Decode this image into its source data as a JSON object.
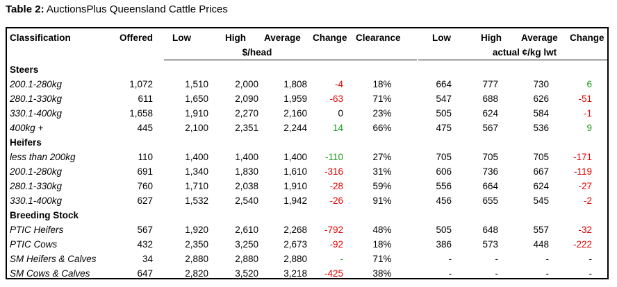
{
  "caption": {
    "label": "Table 2:",
    "title": "AuctionsPlus Queensland Cattle Prices"
  },
  "headers": {
    "classification": "Classification",
    "offered": "Offered",
    "low": "Low",
    "high": "High",
    "average": "Average",
    "change": "Change",
    "clearance": "Clearance",
    "low2": "Low",
    "high2": "High",
    "average2": "Average",
    "change2": "Change",
    "unit_head": "$/head",
    "unit_kg": "actual ¢/kg lwt"
  },
  "sections": [
    {
      "name": "Steers",
      "rows": [
        {
          "label": "200.1-280kg",
          "offered": "1,072",
          "low": "1,510",
          "high": "2,000",
          "avg": "1,808",
          "change": "-4",
          "change_color": "red",
          "clearance": "18%",
          "low2": "664",
          "high2": "777",
          "avg2": "730",
          "change2": "6",
          "change2_color": "green"
        },
        {
          "label": "280.1-330kg",
          "offered": "611",
          "low": "1,650",
          "high": "2,090",
          "avg": "1,959",
          "change": "-63",
          "change_color": "red",
          "clearance": "71%",
          "low2": "547",
          "high2": "688",
          "avg2": "626",
          "change2": "-51",
          "change2_color": "red"
        },
        {
          "label": "330.1-400kg",
          "offered": "1,658",
          "low": "1,910",
          "high": "2,270",
          "avg": "2,160",
          "change": "0",
          "change_color": "black",
          "clearance": "23%",
          "low2": "505",
          "high2": "624",
          "avg2": "584",
          "change2": "-1",
          "change2_color": "red"
        },
        {
          "label": "400kg +",
          "offered": "445",
          "low": "2,100",
          "high": "2,351",
          "avg": "2,244",
          "change": "14",
          "change_color": "green",
          "clearance": "66%",
          "low2": "475",
          "high2": "567",
          "avg2": "536",
          "change2": "9",
          "change2_color": "green"
        }
      ]
    },
    {
      "name": "Heifers",
      "rows": [
        {
          "label": "less than 200kg",
          "offered": "110",
          "low": "1,400",
          "high": "1,400",
          "avg": "1,400",
          "change": "-110",
          "change_color": "green",
          "clearance": "27%",
          "low2": "705",
          "high2": "705",
          "avg2": "705",
          "change2": "-171",
          "change2_color": "red"
        },
        {
          "label": "200.1-280kg",
          "offered": "691",
          "low": "1,340",
          "high": "1,830",
          "avg": "1,610",
          "change": "-316",
          "change_color": "red",
          "clearance": "31%",
          "low2": "606",
          "high2": "736",
          "avg2": "667",
          "change2": "-119",
          "change2_color": "red"
        },
        {
          "label": "280.1-330kg",
          "offered": "760",
          "low": "1,710",
          "high": "2,038",
          "avg": "1,910",
          "change": "-28",
          "change_color": "red",
          "clearance": "59%",
          "low2": "556",
          "high2": "664",
          "avg2": "624",
          "change2": "-27",
          "change2_color": "red"
        },
        {
          "label": "330.1-400kg",
          "offered": "627",
          "low": "1,532",
          "high": "2,540",
          "avg": "1,942",
          "change": "-26",
          "change_color": "red",
          "clearance": "91%",
          "low2": "456",
          "high2": "655",
          "avg2": "545",
          "change2": "-2",
          "change2_color": "red"
        }
      ]
    },
    {
      "name": "Breeding Stock",
      "rows": [
        {
          "label": "PTIC Heifers",
          "offered": "567",
          "low": "1,920",
          "high": "2,610",
          "avg": "2,268",
          "change": "-792",
          "change_color": "red",
          "clearance": "48%",
          "low2": "505",
          "high2": "648",
          "avg2": "557",
          "change2": "-32",
          "change2_color": "red"
        },
        {
          "label": "PTIC Cows",
          "offered": "432",
          "low": "2,350",
          "high": "3,250",
          "avg": "2,673",
          "change": "-92",
          "change_color": "red",
          "clearance": "18%",
          "low2": "386",
          "high2": "573",
          "avg2": "448",
          "change2": "-222",
          "change2_color": "red"
        },
        {
          "label": "SM Heifers & Calves",
          "offered": "34",
          "low": "2,880",
          "high": "2,880",
          "avg": "2,880",
          "change": "-",
          "change_color": "green",
          "clearance": "71%",
          "low2": "-",
          "high2": "-",
          "avg2": "-",
          "change2": "-",
          "change2_color": "black"
        },
        {
          "label": "SM Cows & Calves",
          "offered": "647",
          "low": "2,820",
          "high": "3,520",
          "avg": "3,218",
          "change": "-425",
          "change_color": "red",
          "clearance": "38%",
          "low2": "-",
          "high2": "-",
          "avg2": "-",
          "change2": "-",
          "change2_color": "black"
        }
      ]
    }
  ]
}
